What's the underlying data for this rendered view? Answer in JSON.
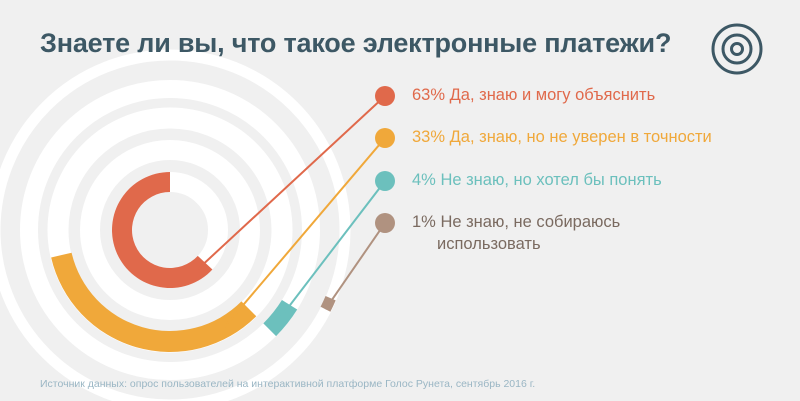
{
  "title": "Знаете ли вы, что такое электронные платежи?",
  "source": "Источник данных: опрос пользователей на интерактивной платформе Голос Рунета, сентябрь 2016 г.",
  "colors": {
    "background": "#f0f0f0",
    "title": "#3d5865",
    "guide_rings": "#ffffff",
    "logo": "#3d5865"
  },
  "logo_icon": "target-icon",
  "chart_data": {
    "type": "radial-bar",
    "unit": "%",
    "series": [
      {
        "value": 63,
        "pct_label": "63%",
        "label": "Да, знаю и могу объяснить",
        "label_lines": [
          "Да, знаю и могу объяснить"
        ],
        "color": "#e0694b"
      },
      {
        "value": 33,
        "pct_label": "33%",
        "label": "Да, знаю, но не уверен в точности",
        "label_lines": [
          "Да, знаю, но не уверен в точности"
        ],
        "color": "#f0a83a"
      },
      {
        "value": 4,
        "pct_label": "4%",
        "label": "Не знаю, но хотел бы понять",
        "label_lines": [
          "Не знаю, но хотел бы понять"
        ],
        "color": "#6cc0bd"
      },
      {
        "value": 1,
        "pct_label": "1%",
        "label": "Не знаю, не собираюсь использовать",
        "label_lines": [
          "Не знаю, не собираюсь",
          "использовать"
        ],
        "color": "#b09280"
      }
    ]
  }
}
